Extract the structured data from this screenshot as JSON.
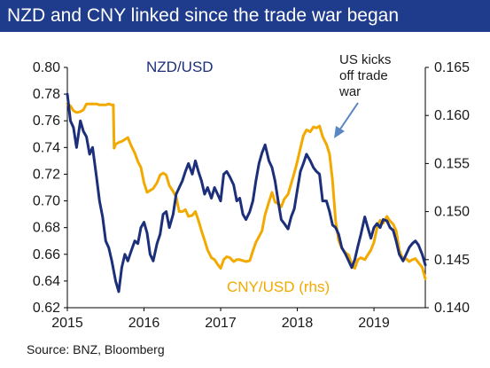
{
  "title": "NZD and CNY linked since the trade war began",
  "source": "Source: BNZ, Bloomberg",
  "colors": {
    "title_bg": "#1f3c8c",
    "nzd": "#1c2f7a",
    "cny": "#f2a900",
    "annotation_arrow": "#5b86c4",
    "nzd_label": "#1c2f7a",
    "cny_label": "#f2a900"
  },
  "chart_data": {
    "type": "line",
    "x_ticks": [
      "2015",
      "2016",
      "2017",
      "2018",
      "2019"
    ],
    "xlim": [
      2015,
      2019.67
    ],
    "y_left_ticks": [
      "0.62",
      "0.64",
      "0.66",
      "0.68",
      "0.70",
      "0.72",
      "0.74",
      "0.76",
      "0.78",
      "0.80"
    ],
    "ylim_left": [
      0.62,
      0.8
    ],
    "y_right_ticks": [
      "0.140",
      "0.145",
      "0.150",
      "0.155",
      "0.160",
      "0.165"
    ],
    "ylim_right": [
      0.14,
      0.165
    ],
    "grid": false,
    "annotations": [
      {
        "text_lines": [
          "US kicks",
          "off trade",
          "war"
        ]
      }
    ],
    "series": [
      {
        "name": "NZD/USD",
        "axis": "left",
        "x": [
          2015.0,
          2015.04,
          2015.08,
          2015.12,
          2015.17,
          2015.21,
          2015.25,
          2015.29,
          2015.33,
          2015.38,
          2015.42,
          2015.46,
          2015.5,
          2015.54,
          2015.58,
          2015.63,
          2015.67,
          2015.71,
          2015.75,
          2015.79,
          2015.83,
          2015.88,
          2015.92,
          2015.96,
          2016.0,
          2016.04,
          2016.08,
          2016.12,
          2016.17,
          2016.21,
          2016.25,
          2016.29,
          2016.33,
          2016.38,
          2016.42,
          2016.46,
          2016.5,
          2016.54,
          2016.58,
          2016.63,
          2016.67,
          2016.71,
          2016.75,
          2016.79,
          2016.83,
          2016.88,
          2016.92,
          2016.96,
          2017.0,
          2017.04,
          2017.08,
          2017.12,
          2017.17,
          2017.21,
          2017.25,
          2017.29,
          2017.33,
          2017.38,
          2017.42,
          2017.46,
          2017.5,
          2017.54,
          2017.58,
          2017.63,
          2017.67,
          2017.71,
          2017.75,
          2017.79,
          2017.83,
          2017.88,
          2017.92,
          2017.96,
          2018.0,
          2018.04,
          2018.08,
          2018.12,
          2018.17,
          2018.21,
          2018.25,
          2018.29,
          2018.33,
          2018.38,
          2018.42,
          2018.46,
          2018.5,
          2018.54,
          2018.58,
          2018.63,
          2018.67,
          2018.71,
          2018.75,
          2018.79,
          2018.83,
          2018.88,
          2018.92,
          2018.96,
          2019.0,
          2019.04,
          2019.08,
          2019.12,
          2019.17,
          2019.21,
          2019.25,
          2019.29,
          2019.33,
          2019.38,
          2019.42,
          2019.46,
          2019.5,
          2019.54,
          2019.58,
          2019.63,
          2019.67
        ],
        "values": [
          0.78,
          0.76,
          0.755,
          0.74,
          0.76,
          0.752,
          0.748,
          0.735,
          0.74,
          0.718,
          0.7,
          0.688,
          0.67,
          0.665,
          0.655,
          0.64,
          0.632,
          0.65,
          0.66,
          0.655,
          0.662,
          0.67,
          0.668,
          0.68,
          0.684,
          0.676,
          0.66,
          0.655,
          0.668,
          0.675,
          0.69,
          0.692,
          0.68,
          0.69,
          0.705,
          0.71,
          0.715,
          0.722,
          0.728,
          0.72,
          0.73,
          0.722,
          0.715,
          0.705,
          0.71,
          0.702,
          0.71,
          0.705,
          0.7,
          0.72,
          0.722,
          0.718,
          0.712,
          0.7,
          0.702,
          0.69,
          0.686,
          0.692,
          0.7,
          0.715,
          0.728,
          0.736,
          0.742,
          0.73,
          0.725,
          0.715,
          0.7,
          0.686,
          0.683,
          0.679,
          0.688,
          0.694,
          0.708,
          0.722,
          0.728,
          0.735,
          0.73,
          0.725,
          0.722,
          0.72,
          0.7,
          0.7,
          0.692,
          0.682,
          0.68,
          0.675,
          0.665,
          0.66,
          0.655,
          0.65,
          0.656,
          0.666,
          0.675,
          0.688,
          0.68,
          0.672,
          0.68,
          0.683,
          0.68,
          0.686,
          0.685,
          0.68,
          0.678,
          0.67,
          0.66,
          0.655,
          0.66,
          0.665,
          0.668,
          0.67,
          0.667,
          0.66,
          0.652
        ]
      },
      {
        "name": "CNY/USD (rhs)",
        "axis": "right",
        "x": [
          2015.0,
          2015.04,
          2015.08,
          2015.12,
          2015.17,
          2015.21,
          2015.25,
          2015.29,
          2015.33,
          2015.38,
          2015.42,
          2015.46,
          2015.5,
          2015.54,
          2015.58,
          2015.6,
          2015.61,
          2015.63,
          2015.67,
          2015.71,
          2015.75,
          2015.79,
          2015.83,
          2015.88,
          2015.92,
          2015.96,
          2016.0,
          2016.04,
          2016.08,
          2016.12,
          2016.17,
          2016.21,
          2016.25,
          2016.29,
          2016.33,
          2016.38,
          2016.42,
          2016.46,
          2016.5,
          2016.54,
          2016.58,
          2016.63,
          2016.67,
          2016.71,
          2016.75,
          2016.79,
          2016.83,
          2016.88,
          2016.92,
          2016.96,
          2017.0,
          2017.04,
          2017.08,
          2017.12,
          2017.17,
          2017.21,
          2017.25,
          2017.29,
          2017.33,
          2017.38,
          2017.42,
          2017.46,
          2017.5,
          2017.54,
          2017.58,
          2017.63,
          2017.67,
          2017.71,
          2017.75,
          2017.79,
          2017.83,
          2017.88,
          2017.92,
          2017.96,
          2018.0,
          2018.04,
          2018.08,
          2018.12,
          2018.17,
          2018.21,
          2018.25,
          2018.29,
          2018.33,
          2018.38,
          2018.42,
          2018.46,
          2018.5,
          2018.54,
          2018.58,
          2018.63,
          2018.67,
          2018.71,
          2018.75,
          2018.79,
          2018.83,
          2018.88,
          2018.92,
          2018.96,
          2019.0,
          2019.04,
          2019.08,
          2019.12,
          2019.17,
          2019.21,
          2019.25,
          2019.29,
          2019.33,
          2019.38,
          2019.42,
          2019.46,
          2019.5,
          2019.54,
          2019.58,
          2019.63,
          2019.67
        ],
        "values": [
          0.1612,
          0.161,
          0.1605,
          0.1603,
          0.1604,
          0.1606,
          0.1612,
          0.1612,
          0.1612,
          0.1612,
          0.1611,
          0.1611,
          0.1611,
          0.1612,
          0.1611,
          0.1611,
          0.1566,
          0.157,
          0.1572,
          0.1573,
          0.1575,
          0.1577,
          0.1569,
          0.1561,
          0.1552,
          0.1546,
          0.153,
          0.152,
          0.1522,
          0.1524,
          0.153,
          0.1538,
          0.154,
          0.1538,
          0.1527,
          0.1521,
          0.1515,
          0.15,
          0.15,
          0.1502,
          0.1495,
          0.1496,
          0.15,
          0.1491,
          0.148,
          0.147,
          0.146,
          0.1452,
          0.145,
          0.1445,
          0.1441,
          0.145,
          0.1453,
          0.1452,
          0.1448,
          0.145,
          0.145,
          0.1449,
          0.1448,
          0.1449,
          0.1459,
          0.1468,
          0.1474,
          0.148,
          0.1497,
          0.151,
          0.152,
          0.151,
          0.1508,
          0.1505,
          0.1513,
          0.1518,
          0.1529,
          0.154,
          0.1552,
          0.1566,
          0.1579,
          0.1585,
          0.1583,
          0.1588,
          0.1587,
          0.1589,
          0.1578,
          0.157,
          0.156,
          0.1532,
          0.149,
          0.147,
          0.1462,
          0.1457,
          0.1455,
          0.1445,
          0.1441,
          0.145,
          0.1452,
          0.145,
          0.1455,
          0.146,
          0.1468,
          0.1483,
          0.1491,
          0.1488,
          0.1495,
          0.149,
          0.1487,
          0.148,
          0.146,
          0.145,
          0.1451,
          0.1448,
          0.145,
          0.1451,
          0.1447,
          0.1442,
          0.143
        ]
      }
    ]
  }
}
